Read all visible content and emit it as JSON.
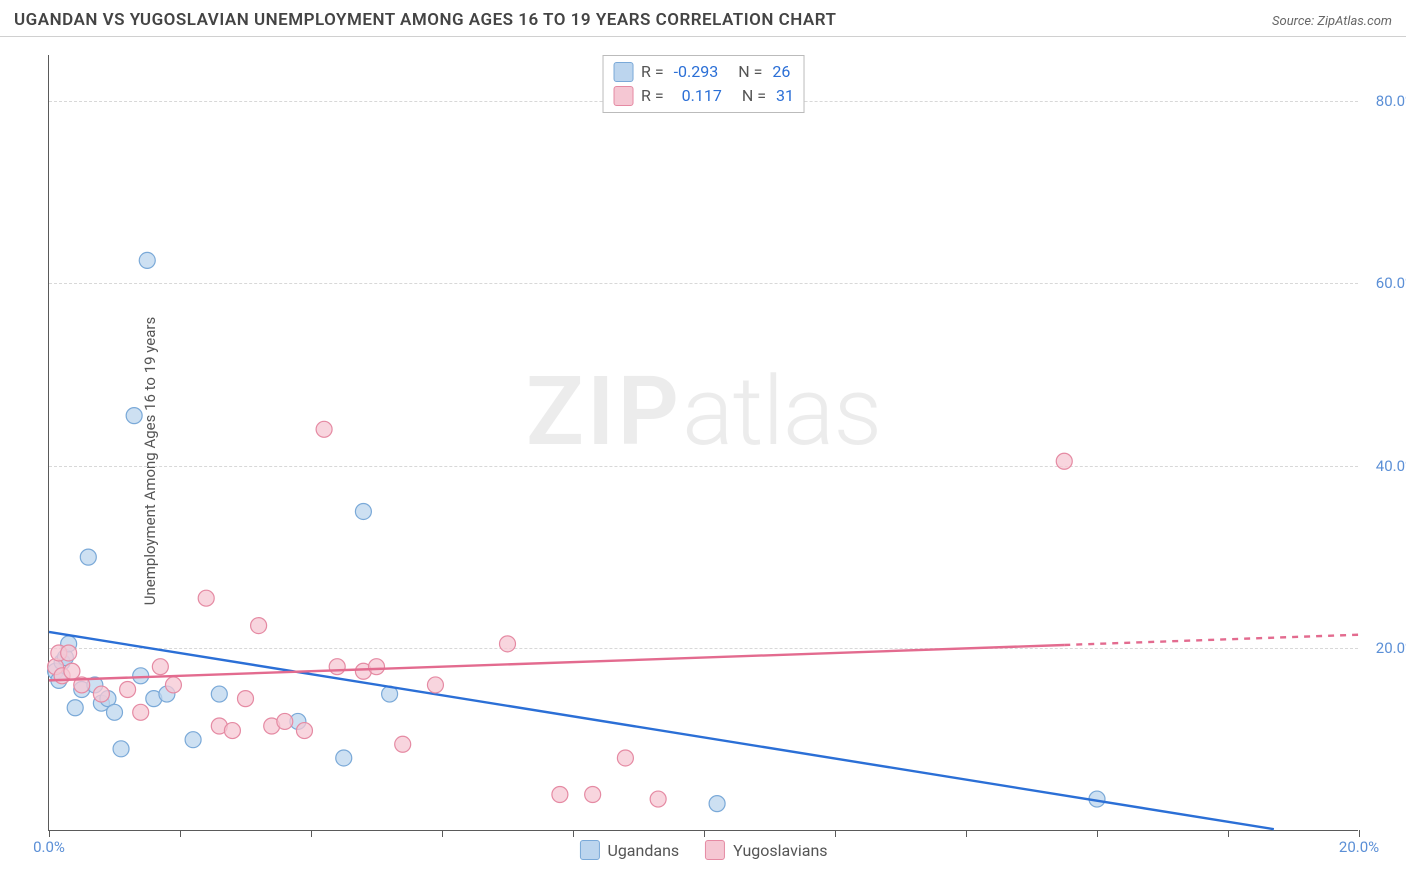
{
  "title": "UGANDAN VS YUGOSLAVIAN UNEMPLOYMENT AMONG AGES 16 TO 19 YEARS CORRELATION CHART",
  "source": "Source: ZipAtlas.com",
  "ylabel": "Unemployment Among Ages 16 to 19 years",
  "watermark_bold": "ZIP",
  "watermark_light": "atlas",
  "chart": {
    "type": "scatter",
    "background_color": "#ffffff",
    "grid_color": "#d8d8d8",
    "axis_color": "#5a5a5a",
    "tick_label_color": "#5b8fd6",
    "tick_fontsize": 15,
    "xlim": [
      0,
      20
    ],
    "ylim": [
      0,
      85
    ],
    "xtick_positions": [
      0,
      2,
      4,
      6,
      8,
      10,
      12,
      14,
      16,
      18,
      20
    ],
    "xtick_labels": {
      "0": "0.0%",
      "20": "20.0%"
    },
    "ytick_positions": [
      20,
      40,
      60,
      80
    ],
    "ytick_labels": {
      "20": "20.0%",
      "40": "40.0%",
      "60": "60.0%",
      "80": "80.0%"
    },
    "marker_radius": 8,
    "marker_stroke_width": 1.2,
    "line_width": 2.4,
    "series": [
      {
        "name": "Ugandans",
        "fill": "#bcd5ee",
        "stroke": "#7aa9d8",
        "line_color": "#2b6fd6",
        "r_value": "-0.293",
        "n_value": "26",
        "trend": {
          "x1": 0,
          "y1": 21.8,
          "x2": 18.7,
          "y2": 0.2
        },
        "points": [
          [
            0.1,
            17.5
          ],
          [
            0.15,
            16.5
          ],
          [
            0.2,
            18.5
          ],
          [
            0.25,
            19.0
          ],
          [
            0.3,
            20.5
          ],
          [
            0.4,
            13.5
          ],
          [
            0.5,
            15.5
          ],
          [
            0.6,
            30.0
          ],
          [
            0.7,
            16.0
          ],
          [
            0.8,
            14.0
          ],
          [
            0.9,
            14.5
          ],
          [
            1.0,
            13.0
          ],
          [
            1.1,
            9.0
          ],
          [
            1.3,
            45.5
          ],
          [
            1.4,
            17.0
          ],
          [
            1.5,
            62.5
          ],
          [
            1.6,
            14.5
          ],
          [
            1.8,
            15.0
          ],
          [
            2.2,
            10.0
          ],
          [
            2.6,
            15.0
          ],
          [
            3.8,
            12.0
          ],
          [
            4.5,
            8.0
          ],
          [
            4.8,
            35.0
          ],
          [
            5.2,
            15.0
          ],
          [
            10.2,
            3.0
          ],
          [
            16.0,
            3.5
          ]
        ]
      },
      {
        "name": "Yugoslavians",
        "fill": "#f5c7d3",
        "stroke": "#e58aa3",
        "line_color": "#e36b8f",
        "line_dash_after_x": 15.5,
        "r_value": "0.117",
        "n_value": "31",
        "trend": {
          "x1": 0,
          "y1": 16.5,
          "x2": 20,
          "y2": 21.5
        },
        "points": [
          [
            0.1,
            18.0
          ],
          [
            0.15,
            19.5
          ],
          [
            0.2,
            17.0
          ],
          [
            0.3,
            19.5
          ],
          [
            0.35,
            17.5
          ],
          [
            0.5,
            16.0
          ],
          [
            0.8,
            15.0
          ],
          [
            1.2,
            15.5
          ],
          [
            1.4,
            13.0
          ],
          [
            1.7,
            18.0
          ],
          [
            1.9,
            16.0
          ],
          [
            2.4,
            25.5
          ],
          [
            2.6,
            11.5
          ],
          [
            2.8,
            11.0
          ],
          [
            3.0,
            14.5
          ],
          [
            3.2,
            22.5
          ],
          [
            3.4,
            11.5
          ],
          [
            3.6,
            12.0
          ],
          [
            3.9,
            11.0
          ],
          [
            4.2,
            44.0
          ],
          [
            4.4,
            18.0
          ],
          [
            4.8,
            17.5
          ],
          [
            5.0,
            18.0
          ],
          [
            5.4,
            9.5
          ],
          [
            5.9,
            16.0
          ],
          [
            7.0,
            20.5
          ],
          [
            7.8,
            4.0
          ],
          [
            8.3,
            4.0
          ],
          [
            8.8,
            8.0
          ],
          [
            9.3,
            3.5
          ],
          [
            15.5,
            40.5
          ]
        ]
      }
    ]
  }
}
